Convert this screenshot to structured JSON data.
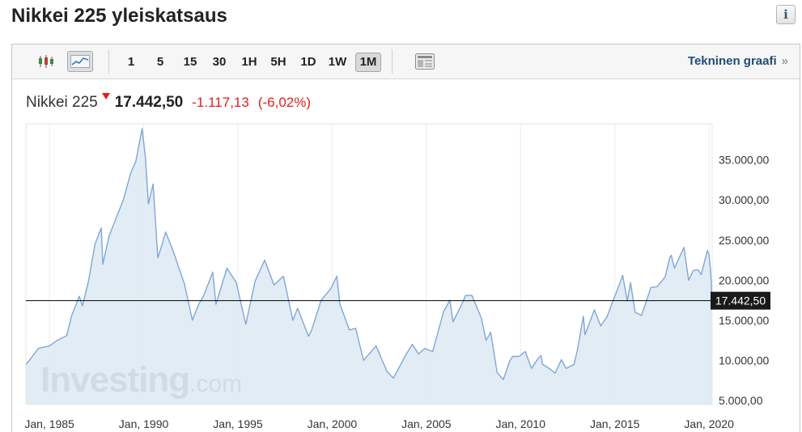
{
  "header": {
    "title": "Nikkei 225 yleiskatsaus",
    "info_icon": "info-icon"
  },
  "toolbar": {
    "chart_type_icons": [
      "candlestick-icon",
      "line-chart-icon"
    ],
    "periods": [
      "1",
      "5",
      "15",
      "30",
      "1H",
      "5H",
      "1D",
      "1W",
      "1M"
    ],
    "active_period": "1M",
    "layout_icon": "window-layout-icon",
    "tech_link": "Tekninen graafi",
    "tech_link_arrow": "»"
  },
  "quote": {
    "name": "Nikkei 225",
    "last": "17.442,50",
    "change": "-1.117,13",
    "change_pct": "(-6,02%)",
    "direction": "down"
  },
  "watermark": {
    "brand": "Investing",
    "suffix": ".com"
  },
  "colors": {
    "line": "#7fa7d6",
    "area": "#dde9f2",
    "price_line": "#000000",
    "down": "#e0201b",
    "link": "#1e4d7b"
  },
  "chart_data": {
    "type": "area",
    "x_axis": {
      "type": "date",
      "range": [
        "1983-10",
        "2020-03"
      ],
      "tick_labels": [
        "Jan, 1985",
        "Jan, 1990",
        "Jan, 1995",
        "Jan, 2000",
        "Jan, 2005",
        "Jan, 2010",
        "Jan, 2015",
        "Jan, 2020"
      ]
    },
    "y_axis": {
      "position": "right",
      "range": [
        4500,
        39500
      ],
      "ticks": [
        5000,
        10000,
        15000,
        20000,
        25000,
        30000,
        35000
      ],
      "tick_labels": [
        "5.000,00",
        "10.000,00",
        "15.000,00",
        "20.000,00",
        "25.000,00",
        "30.000,00",
        "35.000,00"
      ]
    },
    "grid": "vertical",
    "current_price": {
      "value": 17442.5,
      "label": "17.442,50"
    },
    "series": [
      {
        "points": [
          [
            "1983-10",
            9500
          ],
          [
            "1984-01",
            10200
          ],
          [
            "1984-06",
            11500
          ],
          [
            "1985-01",
            11800
          ],
          [
            "1985-06",
            12500
          ],
          [
            "1985-12",
            13100
          ],
          [
            "1986-03",
            15500
          ],
          [
            "1986-08",
            18000
          ],
          [
            "1986-10",
            16800
          ],
          [
            "1987-02",
            20000
          ],
          [
            "1987-06",
            24500
          ],
          [
            "1987-10",
            26500
          ],
          [
            "1987-11",
            22000
          ],
          [
            "1988-03",
            25500
          ],
          [
            "1988-08",
            28000
          ],
          [
            "1988-12",
            30000
          ],
          [
            "1989-05",
            33500
          ],
          [
            "1989-08",
            34800
          ],
          [
            "1989-12",
            38900
          ],
          [
            "1990-02",
            35500
          ],
          [
            "1990-04",
            29500
          ],
          [
            "1990-07",
            32000
          ],
          [
            "1990-10",
            22800
          ],
          [
            "1990-12",
            24000
          ],
          [
            "1991-03",
            26000
          ],
          [
            "1991-08",
            23500
          ],
          [
            "1992-03",
            19500
          ],
          [
            "1992-08",
            15000
          ],
          [
            "1992-12",
            17000
          ],
          [
            "1993-03",
            18000
          ],
          [
            "1993-09",
            21000
          ],
          [
            "1993-11",
            17000
          ],
          [
            "1994-06",
            21500
          ],
          [
            "1994-12",
            19700
          ],
          [
            "1995-06",
            14500
          ],
          [
            "1995-12",
            19900
          ],
          [
            "1996-06",
            22500
          ],
          [
            "1996-12",
            19400
          ],
          [
            "1997-06",
            20500
          ],
          [
            "1997-12",
            15000
          ],
          [
            "1998-03",
            16500
          ],
          [
            "1998-10",
            13000
          ],
          [
            "1998-12",
            13800
          ],
          [
            "1999-06",
            17500
          ],
          [
            "1999-12",
            18900
          ],
          [
            "2000-04",
            20500
          ],
          [
            "2000-06",
            17000
          ],
          [
            "2000-12",
            13800
          ],
          [
            "2001-04",
            14000
          ],
          [
            "2001-09",
            10000
          ],
          [
            "2002-05",
            11800
          ],
          [
            "2002-12",
            8600
          ],
          [
            "2003-04",
            7800
          ],
          [
            "2003-12",
            10700
          ],
          [
            "2004-04",
            12000
          ],
          [
            "2004-08",
            10800
          ],
          [
            "2004-12",
            11500
          ],
          [
            "2005-05",
            11100
          ],
          [
            "2005-12",
            16100
          ],
          [
            "2006-04",
            17500
          ],
          [
            "2006-06",
            14800
          ],
          [
            "2006-12",
            17200
          ],
          [
            "2007-02",
            18100
          ],
          [
            "2007-06",
            18100
          ],
          [
            "2007-12",
            15300
          ],
          [
            "2008-03",
            12500
          ],
          [
            "2008-06",
            13500
          ],
          [
            "2008-10",
            8500
          ],
          [
            "2009-02",
            7600
          ],
          [
            "2009-06",
            9900
          ],
          [
            "2009-08",
            10500
          ],
          [
            "2009-12",
            10500
          ],
          [
            "2010-04",
            11100
          ],
          [
            "2010-08",
            9000
          ],
          [
            "2010-12",
            10200
          ],
          [
            "2011-02",
            10600
          ],
          [
            "2011-03",
            9500
          ],
          [
            "2011-08",
            8900
          ],
          [
            "2011-11",
            8400
          ],
          [
            "2012-03",
            10100
          ],
          [
            "2012-06",
            9000
          ],
          [
            "2012-11",
            9500
          ],
          [
            "2013-01",
            11100
          ],
          [
            "2013-05",
            15500
          ],
          [
            "2013-06",
            13200
          ],
          [
            "2013-12",
            16300
          ],
          [
            "2014-04",
            14300
          ],
          [
            "2014-08",
            15400
          ],
          [
            "2014-12",
            17500
          ],
          [
            "2015-04",
            19500
          ],
          [
            "2015-06",
            20600
          ],
          [
            "2015-09",
            17400
          ],
          [
            "2015-11",
            19700
          ],
          [
            "2016-02",
            16000
          ],
          [
            "2016-06",
            15600
          ],
          [
            "2016-12",
            19100
          ],
          [
            "2017-04",
            19200
          ],
          [
            "2017-09",
            20400
          ],
          [
            "2017-12",
            22800
          ],
          [
            "2018-01",
            23100
          ],
          [
            "2018-03",
            21500
          ],
          [
            "2018-09",
            24100
          ],
          [
            "2018-12",
            20000
          ],
          [
            "2019-03",
            21200
          ],
          [
            "2019-06",
            21300
          ],
          [
            "2019-08",
            20700
          ],
          [
            "2019-12",
            23700
          ],
          [
            "2020-01",
            23200
          ],
          [
            "2020-02",
            21100
          ],
          [
            "2020-03",
            17442.5
          ]
        ]
      }
    ]
  }
}
